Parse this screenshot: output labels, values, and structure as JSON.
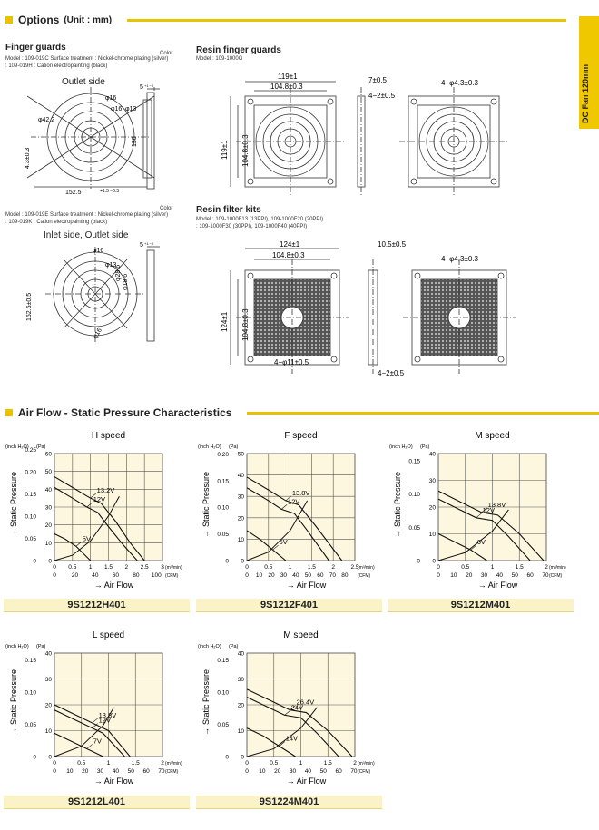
{
  "side_tab": "DC Fan 120mm",
  "options": {
    "title": "Options",
    "unit": "(Unit : mm)",
    "finger_guards": {
      "title": "Finger guards",
      "block1": {
        "color_heading": "Color",
        "model_line1": "Model : 109-019C     Surface treatment : Nickel-chrome plating (silver)",
        "model_line2": "        : 109-019H                                 : Cation electropainting (black)",
        "view_label": "Outlet side",
        "dims": {
          "d_top": "φ16",
          "d_r": "φ13",
          "d_outer": "φ42.2",
          "d_rt": "φ16",
          "height": "130",
          "hole": "4.3±0.3",
          "width": "152.5",
          "width_tol": "+1.5 −0.5",
          "thick": "5",
          "thick_tol": "+1 −0"
        }
      },
      "block2": {
        "color_heading": "Color",
        "model_line1": "Model : 109-019E     Surface treatment : Nickel-chrome plating (silver)",
        "model_line2": "        : 109-019K                                 : Cation electropainting (black)",
        "view_label": "Inlet side, Outlet side",
        "dims": {
          "d1": "φ16",
          "d2": "φ13",
          "d3": "φ28.6",
          "d4": "φ18.6",
          "d5": "φ16",
          "height": "152.5±0.5",
          "thick": "5",
          "thick_tol": "+1 −0"
        }
      }
    },
    "resin_finger_guards": {
      "title": "Resin finger guards",
      "model": "Model : 109-1000G",
      "dims": {
        "w_outer": "119±1",
        "w_inner": "104.8±0.3",
        "h_outer": "119±1",
        "h_inner": "104.8±0.3",
        "depth": "7±0.5",
        "step": "4−2±0.5",
        "holes": "4−φ4.3±0.3"
      }
    },
    "resin_filter_kits": {
      "title": "Resin filter kits",
      "model_line1": "Model : 109-1000F13 (13PPI),  109-1000F20 (20PPI)",
      "model_line2": "        : 109-1000F30 (30PPI),  109-1000F40 (40PPI)",
      "dims": {
        "w_outer": "124±1",
        "w_inner": "104.8±0.3",
        "h_outer": "124±1",
        "h_inner": "104.8±0.3",
        "depth": "10.5±0.5",
        "holes": "4−φ4.3±0.3",
        "bottom_holes": "4−φ11±0.5",
        "step": "4−2±0.5"
      }
    }
  },
  "airflow": {
    "title": "Air Flow - Static Pressure Characteristics",
    "charts": [
      {
        "speed_label": "H speed",
        "model": "9S1212H401",
        "chart_data": {
          "type": "line",
          "title": "H speed",
          "ylabel": "Static Pressure",
          "y_inch_label": "(inch H₂O)",
          "y_pa_label": "(Pa)",
          "y_pa_ticks": [
            "0",
            "10",
            "20",
            "30",
            "40",
            "50",
            "60"
          ],
          "y_inch_ticks": [
            "0",
            "0.05",
            "0.10",
            "0.15",
            "0.20",
            "0.25"
          ],
          "y_pa_max": 60,
          "xlabel": "→ Air Flow",
          "x_m3_unit": "(m³/min)",
          "x_cfm_unit": "(CFM)",
          "x_m3_ticks": [
            "0",
            "0.5",
            "1",
            "1.5",
            "2",
            "2.5",
            "3"
          ],
          "x_cfm_ticks": [
            "0",
            "20",
            "40",
            "60",
            "80",
            "100"
          ],
          "x_max": 3,
          "series": [
            {
              "name": "13.2V",
              "x": [
                0,
                0.5,
                1.0,
                1.3,
                1.7,
                2.1,
                2.5
              ],
              "y": [
                47,
                41,
                35,
                32,
                22,
                10,
                0
              ]
            },
            {
              "name": "12V",
              "x": [
                0,
                0.5,
                0.9,
                1.2,
                1.5,
                1.9,
                2.3
              ],
              "y": [
                41,
                35,
                30,
                27,
                19,
                9,
                0
              ]
            },
            {
              "name": "5V",
              "x": [
                0,
                0.3,
                0.6,
                0.8,
                1.0
              ],
              "y": [
                15,
                12,
                8,
                4,
                0
              ]
            }
          ],
          "system_curve": {
            "x": [
              0,
              0.5,
              1.0,
              1.5,
              1.8
            ],
            "y": [
              0,
              3,
              11,
              25,
              36
            ]
          }
        }
      },
      {
        "speed_label": "F speed",
        "model": "9S1212F401",
        "chart_data": {
          "type": "line",
          "title": "F speed",
          "ylabel": "Static Pressure",
          "y_inch_label": "(inch H₂O)",
          "y_pa_label": "(Pa)",
          "y_pa_ticks": [
            "0",
            "10",
            "20",
            "30",
            "40",
            "50"
          ],
          "y_inch_ticks": [
            "0",
            "0.05",
            "0.10",
            "0.15",
            "0.20"
          ],
          "y_pa_max": 50,
          "xlabel": "→ Air Flow",
          "x_m3_unit": "(m³/min)",
          "x_cfm_unit": "(CFM)",
          "x_m3_ticks": [
            "0",
            "0.5",
            "1",
            "1.5",
            "2",
            "2.5"
          ],
          "x_cfm_ticks": [
            "0",
            "10",
            "20",
            "30",
            "40",
            "50",
            "60",
            "70",
            "80"
          ],
          "x_max": 2.5,
          "series": [
            {
              "name": "13.8V",
              "x": [
                0,
                0.5,
                0.9,
                1.2,
                1.6,
                2.2
              ],
              "y": [
                39,
                33,
                28,
                26,
                16,
                0
              ]
            },
            {
              "name": "12V",
              "x": [
                0,
                0.5,
                0.8,
                1.1,
                1.4,
                1.9
              ],
              "y": [
                34,
                28,
                24,
                22,
                14,
                0
              ]
            },
            {
              "name": "5V",
              "x": [
                0,
                0.3,
                0.6,
                0.9
              ],
              "y": [
                14,
                10,
                5,
                0
              ]
            }
          ],
          "system_curve": {
            "x": [
              0,
              0.5,
              1.0,
              1.4
            ],
            "y": [
              0,
              4,
              14,
              28
            ]
          }
        }
      },
      {
        "speed_label": "M speed",
        "model": "9S1212M401",
        "chart_data": {
          "type": "line",
          "title": "M speed",
          "ylabel": "Static Pressure",
          "y_inch_label": "(inch H₂O)",
          "y_pa_label": "(Pa)",
          "y_pa_ticks": [
            "0",
            "10",
            "20",
            "30",
            "40"
          ],
          "y_inch_ticks": [
            "0",
            "0.05",
            "0.10",
            "0.15"
          ],
          "y_pa_max": 40,
          "xlabel": "→ Air Flow",
          "x_m3_unit": "(m³/min)",
          "x_cfm_unit": "(CFM)",
          "x_m3_ticks": [
            "0",
            "0.5",
            "1",
            "1.5",
            "2"
          ],
          "x_cfm_ticks": [
            "0",
            "10",
            "20",
            "30",
            "40",
            "50",
            "60",
            "70"
          ],
          "x_max": 2,
          "series": [
            {
              "name": "13.8V",
              "x": [
                0,
                0.4,
                0.8,
                1.1,
                1.5,
                1.95
              ],
              "y": [
                26,
                22,
                18,
                17,
                10,
                0
              ]
            },
            {
              "name": "12V",
              "x": [
                0,
                0.4,
                0.7,
                1.0,
                1.3,
                1.7
              ],
              "y": [
                23,
                19,
                16,
                15,
                9,
                0
              ]
            },
            {
              "name": "6V",
              "x": [
                0,
                0.3,
                0.6,
                0.9
              ],
              "y": [
                10,
                7,
                4,
                0
              ]
            }
          ],
          "system_curve": {
            "x": [
              0,
              0.5,
              1.0,
              1.3
            ],
            "y": [
              0,
              3,
              11,
              19
            ]
          }
        }
      },
      {
        "speed_label": "L speed",
        "model": "9S1212L401",
        "chart_data": {
          "type": "line",
          "title": "L speed",
          "ylabel": "Static Pressure",
          "y_inch_label": "(inch H₂O)",
          "y_pa_label": "(Pa)",
          "y_pa_ticks": [
            "0",
            "10",
            "20",
            "30",
            "40"
          ],
          "y_inch_ticks": [
            "0",
            "0.05",
            "0.10",
            "0.15"
          ],
          "y_pa_max": 40,
          "xlabel": "→ Air Flow",
          "x_m3_unit": "(m³/min)",
          "x_cfm_unit": "(CFM)",
          "x_m3_ticks": [
            "0",
            "0.5",
            "1",
            "1.5",
            "2"
          ],
          "x_cfm_ticks": [
            "0",
            "10",
            "20",
            "30",
            "40",
            "50",
            "60",
            "70"
          ],
          "x_max": 2,
          "series": [
            {
              "name": "13.8V",
              "x": [
                0,
                0.4,
                0.7,
                1.0,
                1.4
              ],
              "y": [
                20,
                16,
                13,
                10,
                0
              ]
            },
            {
              "name": "12V",
              "x": [
                0,
                0.4,
                0.7,
                0.9,
                1.3
              ],
              "y": [
                18,
                14,
                11,
                9,
                0
              ]
            },
            {
              "name": "7V",
              "x": [
                0,
                0.3,
                0.6,
                0.9
              ],
              "y": [
                9,
                6,
                3,
                0
              ]
            }
          ],
          "system_curve": {
            "x": [
              0,
              0.5,
              0.9,
              1.1
            ],
            "y": [
              0,
              4,
              12,
              19
            ]
          }
        }
      },
      {
        "speed_label": "M speed",
        "model": "9S1224M401",
        "chart_data": {
          "type": "line",
          "title": "M speed",
          "ylabel": "Static Pressure",
          "y_inch_label": "(inch H₂O)",
          "y_pa_label": "(Pa)",
          "y_pa_ticks": [
            "0",
            "10",
            "20",
            "30",
            "40"
          ],
          "y_inch_ticks": [
            "0",
            "0.05",
            "0.10",
            "0.15"
          ],
          "y_pa_max": 40,
          "xlabel": "→ Air Flow",
          "x_m3_unit": "(m³/min)",
          "x_cfm_unit": "(CFM)",
          "x_m3_ticks": [
            "0",
            "0.5",
            "1",
            "1.5",
            "2"
          ],
          "x_cfm_ticks": [
            "0",
            "10",
            "20",
            "30",
            "40",
            "50",
            "60",
            "70"
          ],
          "x_max": 2,
          "series": [
            {
              "name": "26.4V",
              "x": [
                0,
                0.4,
                0.8,
                1.1,
                1.5,
                1.95
              ],
              "y": [
                26,
                22,
                18,
                17,
                10,
                0
              ]
            },
            {
              "name": "24V",
              "x": [
                0,
                0.4,
                0.7,
                1.0,
                1.3,
                1.7
              ],
              "y": [
                23,
                19,
                16,
                15,
                9,
                0
              ]
            },
            {
              "name": "14V",
              "x": [
                0,
                0.3,
                0.6,
                0.9
              ],
              "y": [
                11,
                8,
                4,
                0
              ]
            }
          ],
          "system_curve": {
            "x": [
              0,
              0.5,
              1.0,
              1.3
            ],
            "y": [
              0,
              3,
              11,
              19
            ]
          }
        }
      }
    ]
  }
}
